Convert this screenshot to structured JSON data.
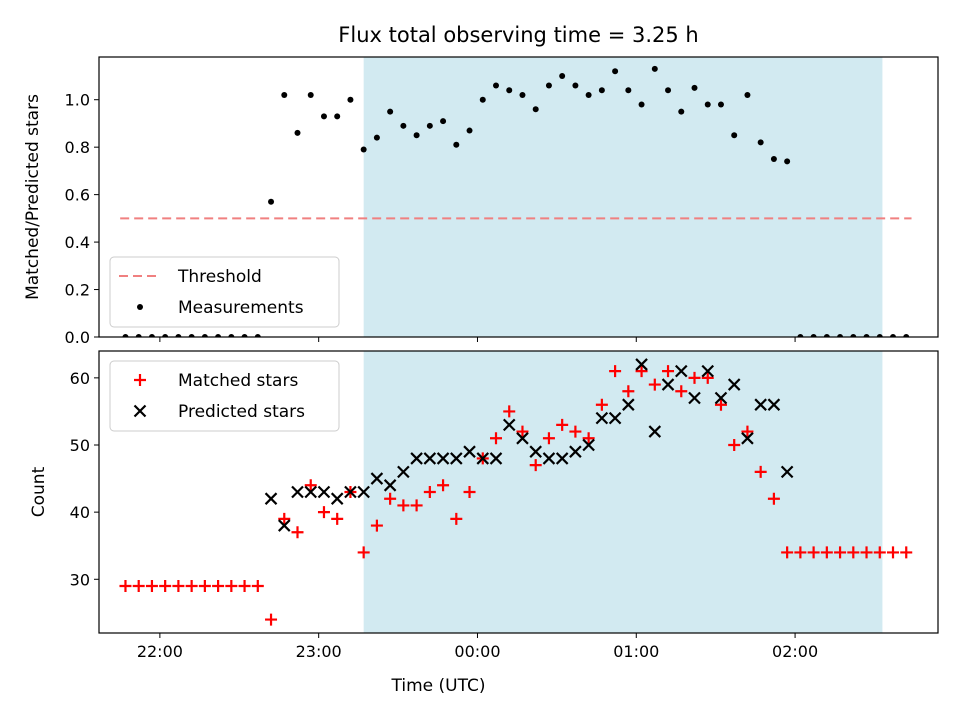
{
  "chart_data": [
    {
      "type": "scatter",
      "title": "Flux total observing time = 3.25 h",
      "xlabel": "",
      "ylabel": "Matched/Predicted stars",
      "xlim": [
        "21:37",
        "02:54"
      ],
      "ylim": [
        0,
        1.18
      ],
      "yticks": [
        "0.0",
        "0.2",
        "0.4",
        "0.6",
        "0.8",
        "1.0"
      ],
      "grid": false,
      "legend_position": "lower-left",
      "shaded_interval": [
        "23:17",
        "02:33"
      ],
      "shade_color": "#add8e6",
      "threshold": {
        "name": "Threshold",
        "value": 0.5,
        "x_range": [
          "21:45",
          "02:44"
        ],
        "color": "#f08080",
        "style": "dashed"
      },
      "series": [
        {
          "name": "Measurements",
          "color": "#000000",
          "marker": "dot",
          "points": [
            [
              "21:47",
              0
            ],
            [
              "21:52",
              0
            ],
            [
              "21:57",
              0
            ],
            [
              "22:02",
              0
            ],
            [
              "22:07",
              0
            ],
            [
              "22:12",
              0
            ],
            [
              "22:17",
              0
            ],
            [
              "22:22",
              0
            ],
            [
              "22:27",
              0
            ],
            [
              "22:32",
              0
            ],
            [
              "22:37",
              0
            ],
            [
              "22:42",
              0.57
            ],
            [
              "22:47",
              1.02
            ],
            [
              "22:52",
              0.86
            ],
            [
              "22:57",
              1.02
            ],
            [
              "23:02",
              0.93
            ],
            [
              "23:07",
              0.93
            ],
            [
              "23:12",
              1.0
            ],
            [
              "23:17",
              0.79
            ],
            [
              "23:22",
              0.84
            ],
            [
              "23:27",
              0.95
            ],
            [
              "23:32",
              0.89
            ],
            [
              "23:37",
              0.85
            ],
            [
              "23:42",
              0.89
            ],
            [
              "23:47",
              0.91
            ],
            [
              "23:52",
              0.81
            ],
            [
              "23:57",
              0.87
            ],
            [
              "00:02",
              1.0
            ],
            [
              "00:07",
              1.06
            ],
            [
              "00:12",
              1.04
            ],
            [
              "00:17",
              1.02
            ],
            [
              "00:22",
              0.96
            ],
            [
              "00:27",
              1.06
            ],
            [
              "00:32",
              1.1
            ],
            [
              "00:37",
              1.06
            ],
            [
              "00:42",
              1.02
            ],
            [
              "00:47",
              1.04
            ],
            [
              "00:52",
              1.12
            ],
            [
              "00:57",
              1.04
            ],
            [
              "01:02",
              0.98
            ],
            [
              "01:07",
              1.13
            ],
            [
              "01:12",
              1.04
            ],
            [
              "01:17",
              0.95
            ],
            [
              "01:22",
              1.05
            ],
            [
              "01:27",
              0.98
            ],
            [
              "01:32",
              0.98
            ],
            [
              "01:37",
              0.85
            ],
            [
              "01:42",
              1.02
            ],
            [
              "01:47",
              0.82
            ],
            [
              "01:52",
              0.75
            ],
            [
              "01:57",
              0.74
            ],
            [
              "02:02",
              0
            ],
            [
              "02:07",
              0
            ],
            [
              "02:12",
              0
            ],
            [
              "02:17",
              0
            ],
            [
              "02:22",
              0
            ],
            [
              "02:27",
              0
            ],
            [
              "02:32",
              0
            ],
            [
              "02:37",
              0
            ],
            [
              "02:42",
              0
            ]
          ]
        }
      ]
    },
    {
      "type": "scatter",
      "title": "",
      "xlabel": "Time (UTC)",
      "ylabel": "Count",
      "xlim": [
        "21:37",
        "02:54"
      ],
      "ylim": [
        22,
        64
      ],
      "yticks": [
        "30",
        "40",
        "50",
        "60"
      ],
      "xticks": [
        "22:00",
        "23:00",
        "00:00",
        "01:00",
        "02:00"
      ],
      "grid": false,
      "legend_position": "upper-left",
      "shaded_interval": [
        "23:17",
        "02:33"
      ],
      "series": [
        {
          "name": "Matched stars",
          "color": "#ff0000",
          "marker": "plus",
          "points": [
            [
              "21:47",
              29
            ],
            [
              "21:52",
              29
            ],
            [
              "21:57",
              29
            ],
            [
              "22:02",
              29
            ],
            [
              "22:07",
              29
            ],
            [
              "22:12",
              29
            ],
            [
              "22:17",
              29
            ],
            [
              "22:22",
              29
            ],
            [
              "22:27",
              29
            ],
            [
              "22:32",
              29
            ],
            [
              "22:37",
              29
            ],
            [
              "22:42",
              24
            ],
            [
              "22:47",
              39
            ],
            [
              "22:52",
              37
            ],
            [
              "22:57",
              44
            ],
            [
              "23:02",
              40
            ],
            [
              "23:07",
              39
            ],
            [
              "23:12",
              43
            ],
            [
              "23:17",
              34
            ],
            [
              "23:22",
              38
            ],
            [
              "23:27",
              42
            ],
            [
              "23:32",
              41
            ],
            [
              "23:37",
              41
            ],
            [
              "23:42",
              43
            ],
            [
              "23:47",
              44
            ],
            [
              "23:52",
              39
            ],
            [
              "23:57",
              43
            ],
            [
              "00:02",
              48
            ],
            [
              "00:07",
              51
            ],
            [
              "00:12",
              55
            ],
            [
              "00:17",
              52
            ],
            [
              "00:22",
              47
            ],
            [
              "00:27",
              51
            ],
            [
              "00:32",
              53
            ],
            [
              "00:37",
              52
            ],
            [
              "00:42",
              51
            ],
            [
              "00:47",
              56
            ],
            [
              "00:52",
              61
            ],
            [
              "00:57",
              58
            ],
            [
              "01:02",
              61
            ],
            [
              "01:07",
              59
            ],
            [
              "01:12",
              61
            ],
            [
              "01:17",
              58
            ],
            [
              "01:22",
              60
            ],
            [
              "01:27",
              60
            ],
            [
              "01:32",
              56
            ],
            [
              "01:37",
              50
            ],
            [
              "01:42",
              52
            ],
            [
              "01:47",
              46
            ],
            [
              "01:52",
              42
            ],
            [
              "01:57",
              34
            ],
            [
              "02:02",
              34
            ],
            [
              "02:07",
              34
            ],
            [
              "02:12",
              34
            ],
            [
              "02:17",
              34
            ],
            [
              "02:22",
              34
            ],
            [
              "02:27",
              34
            ],
            [
              "02:32",
              34
            ],
            [
              "02:37",
              34
            ],
            [
              "02:42",
              34
            ]
          ]
        },
        {
          "name": "Predicted stars",
          "color": "#000000",
          "marker": "x",
          "points": [
            [
              "22:42",
              42
            ],
            [
              "22:47",
              38
            ],
            [
              "22:52",
              43
            ],
            [
              "22:57",
              43
            ],
            [
              "23:02",
              43
            ],
            [
              "23:07",
              42
            ],
            [
              "23:12",
              43
            ],
            [
              "23:17",
              43
            ],
            [
              "23:22",
              45
            ],
            [
              "23:27",
              44
            ],
            [
              "23:32",
              46
            ],
            [
              "23:37",
              48
            ],
            [
              "23:42",
              48
            ],
            [
              "23:47",
              48
            ],
            [
              "23:52",
              48
            ],
            [
              "23:57",
              49
            ],
            [
              "00:02",
              48
            ],
            [
              "00:07",
              48
            ],
            [
              "00:12",
              53
            ],
            [
              "00:17",
              51
            ],
            [
              "00:22",
              49
            ],
            [
              "00:27",
              48
            ],
            [
              "00:32",
              48
            ],
            [
              "00:37",
              49
            ],
            [
              "00:42",
              50
            ],
            [
              "00:47",
              54
            ],
            [
              "00:52",
              54
            ],
            [
              "00:57",
              56
            ],
            [
              "01:02",
              62
            ],
            [
              "01:07",
              52
            ],
            [
              "01:12",
              59
            ],
            [
              "01:17",
              61
            ],
            [
              "01:22",
              57
            ],
            [
              "01:27",
              61
            ],
            [
              "01:32",
              57
            ],
            [
              "01:37",
              59
            ],
            [
              "01:42",
              51
            ],
            [
              "01:47",
              56
            ],
            [
              "01:52",
              56
            ],
            [
              "01:57",
              46
            ]
          ]
        }
      ]
    }
  ]
}
